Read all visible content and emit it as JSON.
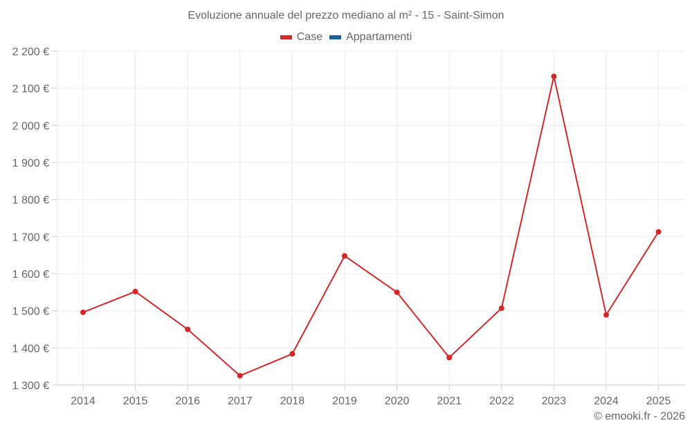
{
  "title": "Evoluzione annuale del prezzo mediano al m² - 15 - Saint-Simon",
  "legend": [
    {
      "label": "Case",
      "color": "#d62728"
    },
    {
      "label": "Appartamenti",
      "color": "#1f5f99"
    }
  ],
  "credit": "© emooki.fr - 2026",
  "colors": {
    "grid": "#ebebeb",
    "axis": "#cccccc",
    "line": "#d62728"
  },
  "chart_data": {
    "type": "line",
    "title": "Evoluzione annuale del prezzo mediano al m² - 15 - Saint-Simon",
    "xlabel": "",
    "ylabel": "",
    "categories": [
      "2014",
      "2015",
      "2016",
      "2017",
      "2018",
      "2019",
      "2020",
      "2021",
      "2022",
      "2023",
      "2024",
      "2025"
    ],
    "series": [
      {
        "name": "Case",
        "color": "#d62728",
        "values": [
          1496,
          1552,
          1450,
          1325,
          1384,
          1648,
          1550,
          1374,
          1507,
          2132,
          1489,
          1713
        ]
      },
      {
        "name": "Appartamenti",
        "color": "#1f5f99",
        "values": []
      }
    ],
    "ylim": [
      1300,
      2200
    ],
    "yticks": [
      1300,
      1400,
      1500,
      1600,
      1700,
      1800,
      1900,
      2000,
      2100,
      2200
    ],
    "ytick_labels": [
      "1 300 €",
      "1 400 €",
      "1 500 €",
      "1 600 €",
      "1 700 €",
      "1 800 €",
      "1 900 €",
      "2 000 €",
      "2 100 €",
      "2 200 €"
    ],
    "grid": true,
    "legend_position": "top"
  }
}
